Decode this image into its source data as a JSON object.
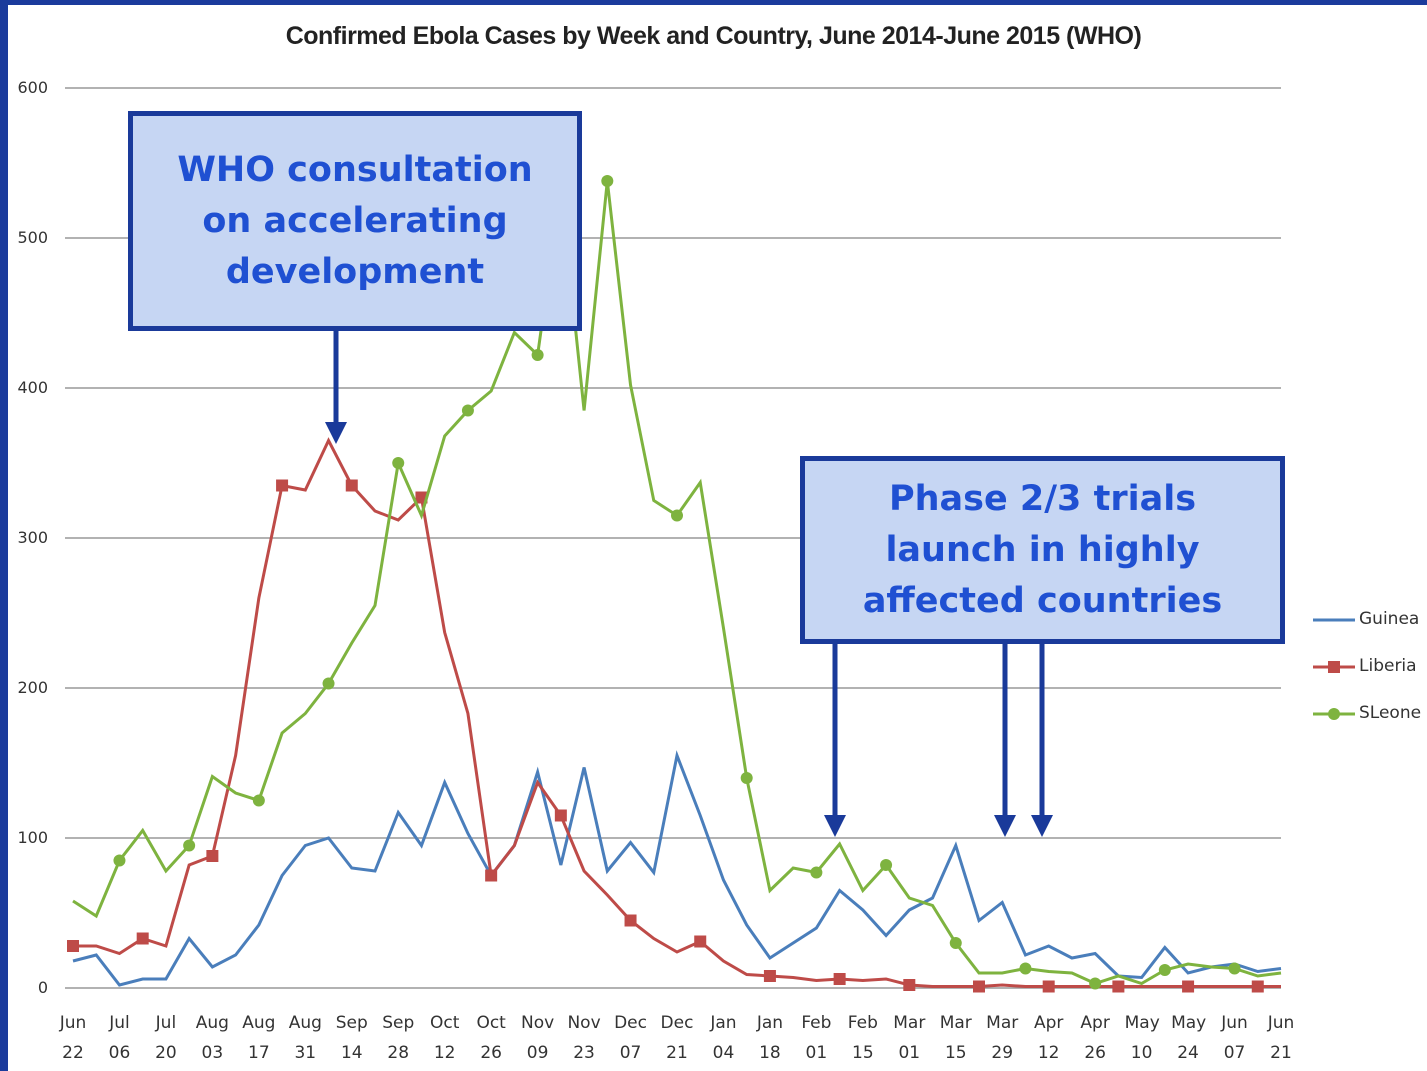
{
  "chart_data": {
    "type": "line",
    "title": "Confirmed Ebola Cases by Week and Country, June 2014-June 2015 (WHO)",
    "categories": [
      "Jun 22",
      null,
      "Jul 06",
      null,
      "Jul 20",
      null,
      "Aug 03",
      null,
      "Aug 17",
      null,
      "Aug 31",
      null,
      "Sep 14",
      null,
      "Sep 28",
      null,
      "Oct 12",
      null,
      "Oct 26",
      null,
      "Nov 09",
      null,
      "Nov 23",
      null,
      "Dec 07",
      null,
      "Dec 21",
      null,
      "Jan 04",
      null,
      "Jan 18",
      null,
      "Feb 01",
      null,
      "Feb 15",
      null,
      "Mar 01",
      null,
      "Mar 15",
      null,
      "Mar 29",
      null,
      "Apr 12",
      null,
      "Apr 26",
      null,
      "May 10",
      null,
      "May 24",
      null,
      "Jun 07",
      null,
      "Jun 21"
    ],
    "series": [
      {
        "name": "Guinea",
        "color": "#4a7ebb",
        "values": [
          18,
          22,
          2,
          6,
          6,
          33,
          14,
          22,
          42,
          75,
          95,
          100,
          80,
          78,
          117,
          95,
          137,
          103,
          75,
          95,
          144,
          82,
          147,
          78,
          97,
          77,
          155,
          115,
          72,
          42,
          20,
          30,
          40,
          65,
          52,
          35,
          52,
          60,
          95,
          45,
          57,
          22,
          28,
          20,
          23,
          8,
          7,
          27,
          10,
          14,
          16,
          11,
          13
        ]
      },
      {
        "name": "Liberia",
        "color": "#be4b48",
        "values": [
          28,
          28,
          23,
          33,
          28,
          82,
          88,
          155,
          260,
          335,
          332,
          365,
          335,
          318,
          312,
          327,
          237,
          183,
          75,
          95,
          137,
          115,
          78,
          62,
          45,
          33,
          24,
          31,
          18,
          9,
          8,
          7,
          5,
          6,
          5,
          6,
          2,
          1,
          1,
          1,
          2,
          1,
          1,
          1,
          1,
          1,
          1,
          1,
          1,
          1,
          1,
          1,
          1
        ]
      },
      {
        "name": "SLeone",
        "color": "#7eb33f",
        "values": [
          58,
          48,
          85,
          105,
          78,
          95,
          141,
          130,
          125,
          170,
          183,
          203,
          230,
          255,
          350,
          315,
          368,
          385,
          398,
          437,
          422,
          533,
          385,
          538,
          402,
          325,
          315,
          337,
          240,
          140,
          65,
          80,
          77,
          96,
          65,
          82,
          60,
          55,
          30,
          10,
          10,
          13,
          11,
          10,
          3,
          8,
          3,
          12,
          16,
          14,
          13,
          8,
          10
        ]
      }
    ],
    "ylim": [
      0,
      600
    ],
    "yticks": [
      0,
      100,
      200,
      300,
      400,
      500,
      600
    ],
    "grid": true,
    "legend": "right",
    "annotations": [
      "WHO consultation on accelerating development",
      "Phase 2/3 trials launch in highly affected countries"
    ]
  }
}
